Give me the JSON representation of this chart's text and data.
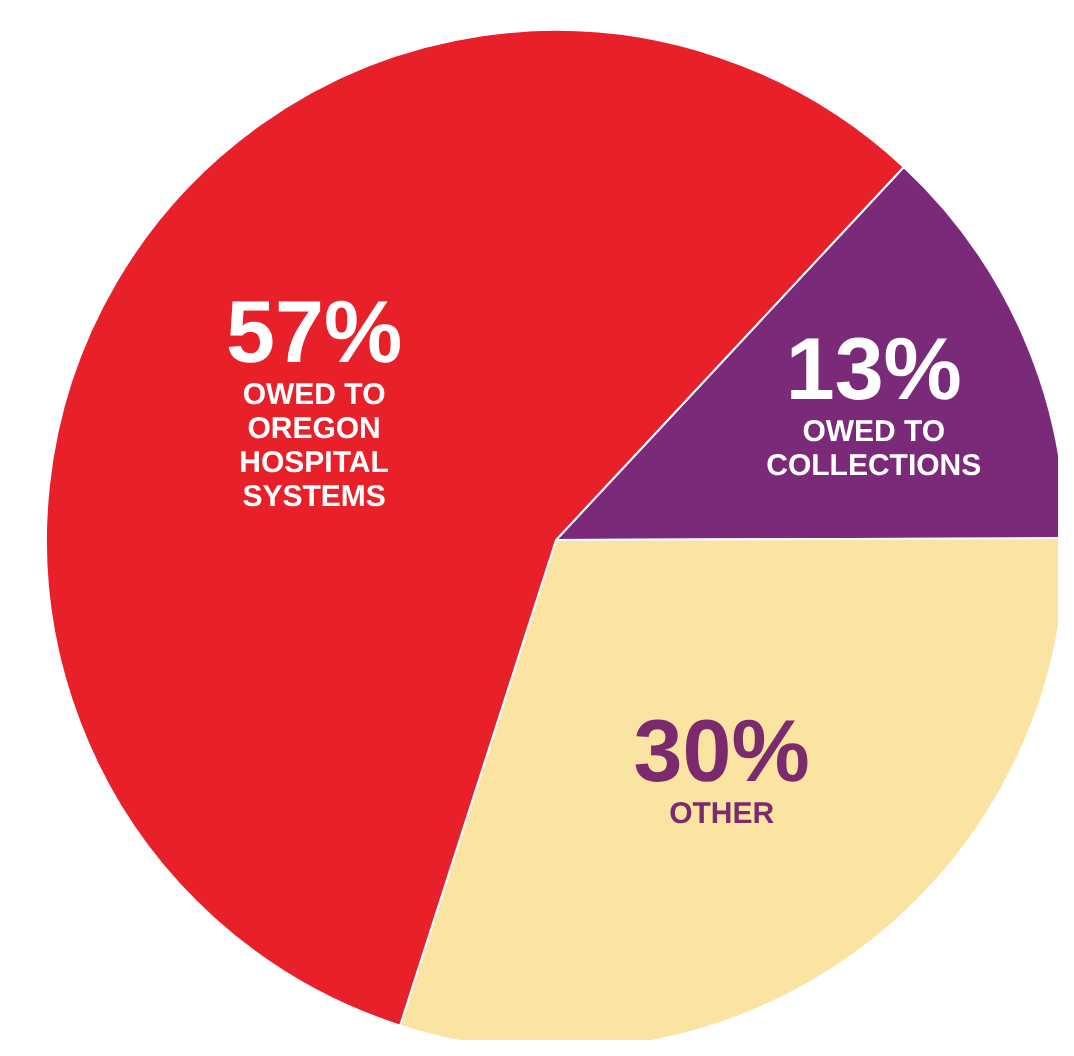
{
  "chart_data": {
    "type": "pie",
    "categories": [
      "OWED TO\nCOLLECTIONS",
      "OTHER",
      "OWED TO\nOREGON\nHOSPITAL\nSYSTEMS"
    ],
    "values": [
      13,
      30,
      57
    ],
    "value_labels": [
      "13%",
      "30%",
      "57%"
    ],
    "colors": [
      "#7b2a7a",
      "#fbe3a1",
      "#e8202a"
    ]
  }
}
